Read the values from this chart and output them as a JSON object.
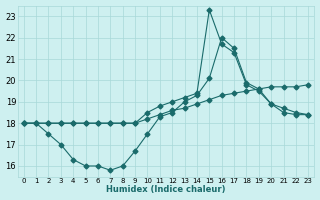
{
  "xlabel": "Humidex (Indice chaleur)",
  "bg_color": "#cef0f0",
  "grid_color": "#a8d8d8",
  "line_color": "#1a6b6b",
  "xlim": [
    -0.5,
    23.5
  ],
  "ylim": [
    15.5,
    23.5
  ],
  "yticks": [
    16,
    17,
    18,
    19,
    20,
    21,
    22,
    23
  ],
  "xticks": [
    0,
    1,
    2,
    3,
    4,
    5,
    6,
    7,
    8,
    9,
    10,
    11,
    12,
    13,
    14,
    15,
    16,
    17,
    18,
    19,
    20,
    21,
    22,
    23
  ],
  "s1_x": [
    0,
    1,
    2,
    3,
    4,
    5,
    6,
    7,
    8,
    9,
    10,
    11,
    12,
    13,
    14,
    15,
    16,
    17,
    18,
    19,
    20,
    21,
    22,
    23
  ],
  "s1_y": [
    18.0,
    18.0,
    17.5,
    17.0,
    16.3,
    16.0,
    16.0,
    15.8,
    16.0,
    16.7,
    17.5,
    18.3,
    18.5,
    19.0,
    19.3,
    20.1,
    22.0,
    21.5,
    19.9,
    19.6,
    18.9,
    18.5,
    18.4,
    18.4
  ],
  "s2_x": [
    0,
    1,
    2,
    3,
    4,
    5,
    6,
    7,
    8,
    9,
    10,
    11,
    12,
    13,
    14,
    15,
    16,
    17,
    18,
    19,
    20,
    21,
    22,
    23
  ],
  "s2_y": [
    18.0,
    18.0,
    18.0,
    18.0,
    18.0,
    18.0,
    18.0,
    18.0,
    18.0,
    18.0,
    18.2,
    18.4,
    18.6,
    18.7,
    18.9,
    19.1,
    19.3,
    19.4,
    19.5,
    19.6,
    19.7,
    19.7,
    19.7,
    19.8
  ],
  "s3_x": [
    0,
    1,
    2,
    3,
    4,
    5,
    6,
    7,
    8,
    9,
    10,
    11,
    12,
    13,
    14,
    15,
    16,
    17,
    18,
    19,
    20,
    21,
    22,
    23
  ],
  "s3_y": [
    18.0,
    18.0,
    18.0,
    18.0,
    18.0,
    18.0,
    18.0,
    18.0,
    18.0,
    18.0,
    18.5,
    18.8,
    19.0,
    19.2,
    19.4,
    23.3,
    21.7,
    21.3,
    19.8,
    19.5,
    18.9,
    18.7,
    18.5,
    18.4
  ],
  "markersize": 2.5,
  "linewidth": 0.8,
  "tick_fontsize": 5,
  "xlabel_fontsize": 6
}
